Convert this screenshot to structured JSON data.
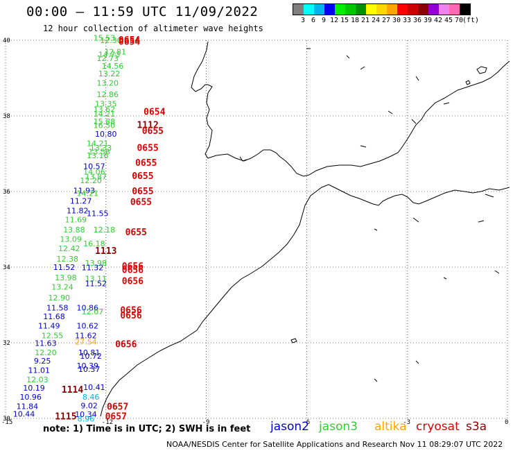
{
  "header": {
    "title": "00:00 – 11:59 UTC 11/09/2022",
    "subtitle": "12 hour collection of altimeter wave heights"
  },
  "color_scale": {
    "unit": "(ft)",
    "colors": [
      "#7f7f7f",
      "#00ffff",
      "#00b2ee",
      "#0000ee",
      "#00ee00",
      "#00c800",
      "#009000",
      "#ffff00",
      "#ffd700",
      "#ffa500",
      "#ff0000",
      "#cd0000",
      "#8b0000",
      "#9400d3",
      "#ee82ee",
      "#ff69b4",
      "#000000"
    ],
    "labels": [
      "3",
      "6",
      "9",
      "12",
      "15",
      "18",
      "21",
      "24",
      "27",
      "30",
      "33",
      "36",
      "39",
      "42",
      "45",
      "70"
    ]
  },
  "axes": {
    "lat_labels": [
      "40",
      "38",
      "36",
      "34",
      "32",
      "30"
    ],
    "lon_labels": [
      "-15",
      "-12",
      "-9",
      "-6",
      "-3",
      "0"
    ]
  },
  "chart_data": {
    "type": "scatter",
    "xlim": [
      -15,
      0
    ],
    "ylim": [
      30,
      40
    ],
    "sat_colors": {
      "jason2": "#0000cd",
      "jason3": "#32cd32",
      "altika": "#ffa500",
      "cryosat": "#dd0000",
      "s3a": "#8b0000",
      "other": "#00b2ee"
    },
    "points": [
      {
        "lon": -12.05,
        "lat": 39.99,
        "v": "15.53",
        "s": "jason3"
      },
      {
        "lon": -11.85,
        "lat": 39.93,
        "v": "12.30",
        "s": "jason3"
      },
      {
        "lon": -11.72,
        "lat": 39.62,
        "v": "12.81",
        "s": "jason3"
      },
      {
        "lon": -11.9,
        "lat": 39.55,
        "v": "14.73",
        "s": "jason3"
      },
      {
        "lon": -11.95,
        "lat": 39.45,
        "v": "12.73",
        "s": "jason3"
      },
      {
        "lon": -11.8,
        "lat": 39.25,
        "v": "14.56",
        "s": "jason3"
      },
      {
        "lon": -11.9,
        "lat": 39.05,
        "v": "13.22",
        "s": "jason3"
      },
      {
        "lon": -11.95,
        "lat": 38.8,
        "v": "13.20",
        "s": "jason3"
      },
      {
        "lon": -11.95,
        "lat": 38.5,
        "v": "12.86",
        "s": "jason3"
      },
      {
        "lon": -12.0,
        "lat": 38.25,
        "v": "13.35",
        "s": "jason3"
      },
      {
        "lon": -12.05,
        "lat": 38.1,
        "v": "13.62",
        "s": "jason3"
      },
      {
        "lon": -12.05,
        "lat": 37.98,
        "v": "14.21",
        "s": "jason3"
      },
      {
        "lon": -12.05,
        "lat": 37.78,
        "v": "15.88",
        "s": "jason3"
      },
      {
        "lon": -12.05,
        "lat": 37.68,
        "v": "16.50",
        "s": "jason3"
      },
      {
        "lon": -12.0,
        "lat": 37.45,
        "v": "10.80",
        "s": "jason2"
      },
      {
        "lon": -12.25,
        "lat": 37.2,
        "v": "14.21",
        "s": "jason3"
      },
      {
        "lon": -12.15,
        "lat": 37.08,
        "v": "13.33",
        "s": "jason3"
      },
      {
        "lon": -12.2,
        "lat": 36.98,
        "v": "13.58",
        "s": "jason3"
      },
      {
        "lon": -12.25,
        "lat": 36.88,
        "v": "13.16",
        "s": "jason3"
      },
      {
        "lon": -12.35,
        "lat": 36.6,
        "v": "10.57",
        "s": "jason2"
      },
      {
        "lon": -12.35,
        "lat": 36.45,
        "v": "14.06",
        "s": "jason3"
      },
      {
        "lon": -12.3,
        "lat": 36.32,
        "v": "13.87",
        "s": "jason3"
      },
      {
        "lon": -12.45,
        "lat": 36.22,
        "v": "12.20",
        "s": "jason3"
      },
      {
        "lon": -12.65,
        "lat": 35.95,
        "v": "11.93",
        "s": "jason2"
      },
      {
        "lon": -12.55,
        "lat": 35.88,
        "v": "14.21",
        "s": "jason3"
      },
      {
        "lon": -12.75,
        "lat": 35.68,
        "v": "11.27",
        "s": "jason2"
      },
      {
        "lon": -12.85,
        "lat": 35.42,
        "v": "11.82",
        "s": "jason2"
      },
      {
        "lon": -12.25,
        "lat": 35.35,
        "v": "11.55",
        "s": "jason2"
      },
      {
        "lon": -12.9,
        "lat": 35.18,
        "v": "11.69",
        "s": "jason3"
      },
      {
        "lon": -12.95,
        "lat": 34.92,
        "v": "13.88",
        "s": "jason3"
      },
      {
        "lon": -12.05,
        "lat": 34.92,
        "v": "12.18",
        "s": "jason3"
      },
      {
        "lon": -13.05,
        "lat": 34.67,
        "v": "13.09",
        "s": "jason3"
      },
      {
        "lon": -12.35,
        "lat": 34.55,
        "v": "16.18",
        "s": "jason3"
      },
      {
        "lon": -13.1,
        "lat": 34.42,
        "v": "12.42",
        "s": "jason3"
      },
      {
        "lon": -13.15,
        "lat": 34.15,
        "v": "12.38",
        "s": "jason3"
      },
      {
        "lon": -12.3,
        "lat": 34.04,
        "v": "13.98",
        "s": "jason3"
      },
      {
        "lon": -13.25,
        "lat": 33.93,
        "v": "11.52",
        "s": "jason2"
      },
      {
        "lon": -12.4,
        "lat": 33.92,
        "v": "11.32",
        "s": "jason2"
      },
      {
        "lon": -13.2,
        "lat": 33.65,
        "v": "13.98",
        "s": "jason3"
      },
      {
        "lon": -12.3,
        "lat": 33.62,
        "v": "13.11",
        "s": "jason3"
      },
      {
        "lon": -12.3,
        "lat": 33.5,
        "v": "11.52",
        "s": "jason2"
      },
      {
        "lon": -13.3,
        "lat": 33.4,
        "v": "13.24",
        "s": "jason3"
      },
      {
        "lon": -13.4,
        "lat": 33.12,
        "v": "12.90",
        "s": "jason3"
      },
      {
        "lon": -13.45,
        "lat": 32.85,
        "v": "11.58",
        "s": "jason2"
      },
      {
        "lon": -12.55,
        "lat": 32.85,
        "v": "10.86",
        "s": "jason2"
      },
      {
        "lon": -12.4,
        "lat": 32.75,
        "v": "12.07",
        "s": "jason3"
      },
      {
        "lon": -13.55,
        "lat": 32.62,
        "v": "11.68",
        "s": "jason2"
      },
      {
        "lon": -13.7,
        "lat": 32.38,
        "v": "11.49",
        "s": "jason2"
      },
      {
        "lon": -12.55,
        "lat": 32.38,
        "v": "10.62",
        "s": "jason2"
      },
      {
        "lon": -12.6,
        "lat": 32.12,
        "v": "11.62",
        "s": "jason2"
      },
      {
        "lon": -13.6,
        "lat": 32.12,
        "v": "12.55",
        "s": "jason3"
      },
      {
        "lon": -12.6,
        "lat": 31.95,
        "v": "27.54",
        "s": "altika"
      },
      {
        "lon": -13.8,
        "lat": 31.92,
        "v": "11.63",
        "s": "jason2"
      },
      {
        "lon": -13.8,
        "lat": 31.67,
        "v": "12.20",
        "s": "jason3"
      },
      {
        "lon": -12.5,
        "lat": 31.67,
        "v": "10.81",
        "s": "jason2"
      },
      {
        "lon": -12.45,
        "lat": 31.58,
        "v": "10.72",
        "s": "jason2"
      },
      {
        "lon": -13.9,
        "lat": 31.45,
        "v": "9.25",
        "s": "jason2"
      },
      {
        "lon": -12.55,
        "lat": 31.32,
        "v": "10.39",
        "s": "jason2"
      },
      {
        "lon": -12.5,
        "lat": 31.23,
        "v": "10.37",
        "s": "jason2"
      },
      {
        "lon": -14.0,
        "lat": 31.2,
        "v": "11.01",
        "s": "jason2"
      },
      {
        "lon": -14.05,
        "lat": 30.95,
        "v": "12.03",
        "s": "jason3"
      },
      {
        "lon": -12.35,
        "lat": 30.75,
        "v": "10.41",
        "s": "jason2"
      },
      {
        "lon": -14.15,
        "lat": 30.73,
        "v": "10.19",
        "s": "jason2"
      },
      {
        "lon": -12.45,
        "lat": 30.5,
        "v": "8.46",
        "s": "other"
      },
      {
        "lon": -14.25,
        "lat": 30.5,
        "v": "10.96",
        "s": "jason2"
      },
      {
        "lon": -12.5,
        "lat": 30.27,
        "v": "9.02",
        "s": "jason2"
      },
      {
        "lon": -14.35,
        "lat": 30.25,
        "v": "11.84",
        "s": "jason2"
      },
      {
        "lon": -12.6,
        "lat": 30.04,
        "v": "10.34",
        "s": "jason2"
      },
      {
        "lon": -14.45,
        "lat": 30.05,
        "v": "10.44",
        "s": "jason2"
      },
      {
        "lon": -12.6,
        "lat": 29.92,
        "v": "8.96",
        "s": "other"
      }
    ],
    "times": [
      {
        "lon": -11.3,
        "lat": 40.0,
        "v": "0654",
        "s": "cryosat"
      },
      {
        "lon": -11.3,
        "lat": 39.95,
        "v": "0654",
        "s": "cryosat"
      },
      {
        "lon": -10.55,
        "lat": 38.1,
        "v": "0654",
        "s": "cryosat"
      },
      {
        "lon": -10.75,
        "lat": 37.75,
        "v": "1112",
        "s": "s3a"
      },
      {
        "lon": -10.6,
        "lat": 37.6,
        "v": "0655",
        "s": "cryosat"
      },
      {
        "lon": -10.75,
        "lat": 37.15,
        "v": "0655",
        "s": "cryosat"
      },
      {
        "lon": -10.8,
        "lat": 36.75,
        "v": "0655",
        "s": "cryosat"
      },
      {
        "lon": -10.9,
        "lat": 36.4,
        "v": "0655",
        "s": "cryosat"
      },
      {
        "lon": -10.9,
        "lat": 36.0,
        "v": "0655",
        "s": "cryosat"
      },
      {
        "lon": -10.95,
        "lat": 35.72,
        "v": "0655",
        "s": "cryosat"
      },
      {
        "lon": -11.1,
        "lat": 34.92,
        "v": "0655",
        "s": "cryosat"
      },
      {
        "lon": -12.0,
        "lat": 34.42,
        "v": "1113",
        "s": "s3a"
      },
      {
        "lon": -11.2,
        "lat": 34.02,
        "v": "0656",
        "s": "cryosat"
      },
      {
        "lon": -11.2,
        "lat": 33.92,
        "v": "0656",
        "s": "cryosat"
      },
      {
        "lon": -11.2,
        "lat": 33.62,
        "v": "0656",
        "s": "cryosat"
      },
      {
        "lon": -11.25,
        "lat": 32.85,
        "v": "0656",
        "s": "cryosat"
      },
      {
        "lon": -11.25,
        "lat": 32.72,
        "v": "0656",
        "s": "cryosat"
      },
      {
        "lon": -11.4,
        "lat": 31.95,
        "v": "0656",
        "s": "cryosat"
      },
      {
        "lon": -13.0,
        "lat": 30.75,
        "v": "1114",
        "s": "s3a"
      },
      {
        "lon": -11.65,
        "lat": 30.3,
        "v": "0657",
        "s": "cryosat"
      },
      {
        "lon": -11.7,
        "lat": 30.05,
        "v": "0657",
        "s": "cryosat"
      },
      {
        "lon": -13.2,
        "lat": 30.05,
        "v": "1115",
        "s": "s3a"
      }
    ]
  },
  "note": "note: 1) Time is in UTC; 2) SWH is in feet",
  "legend": [
    {
      "name": "jason2",
      "color": "#0000cd"
    },
    {
      "name": "jason3",
      "color": "#32cd32"
    },
    {
      "name": "altika",
      "color": "#ffa500"
    },
    {
      "name": "cryosat",
      "color": "#dd0000"
    },
    {
      "name": "s3a",
      "color": "#8b0000"
    }
  ],
  "credit": "NOAA/NESDIS Center for Satellite Applications and Research   Nov 11 08:29:07 UTC 2022"
}
